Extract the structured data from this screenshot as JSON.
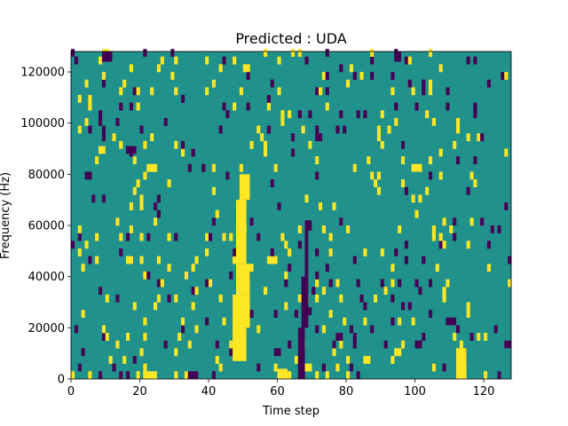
{
  "chart_data": {
    "type": "heatmap",
    "title": "Predicted : UDA",
    "xlabel": "Time step",
    "ylabel": "Frequency (Hz)",
    "xlim": [
      0,
      128
    ],
    "ylim": [
      0,
      128000
    ],
    "xticks": [
      0,
      20,
      40,
      60,
      80,
      100,
      120
    ],
    "yticks": [
      0,
      20000,
      40000,
      60000,
      80000,
      100000,
      120000
    ],
    "grid": false,
    "legend": "none",
    "n_time_steps": 128,
    "n_freq_bins": 128,
    "colors": {
      "background_class": "#21918c",
      "low_class": "#440154",
      "high_class": "#fde725"
    },
    "features": [
      {
        "class": "high",
        "t0": 47,
        "t1": 51,
        "f0": 7000,
        "f1": 20000
      },
      {
        "class": "high",
        "t0": 47,
        "t1": 52,
        "f0": 20000,
        "f1": 33000
      },
      {
        "class": "high",
        "t0": 48,
        "t1": 52,
        "f0": 33000,
        "f1": 45000
      },
      {
        "class": "high",
        "t0": 48,
        "t1": 51,
        "f0": 45000,
        "f1": 58000
      },
      {
        "class": "high",
        "t0": 48,
        "t1": 51,
        "f0": 58000,
        "f1": 70000
      },
      {
        "class": "high",
        "t0": 49,
        "t1": 52,
        "f0": 70000,
        "f1": 80000
      },
      {
        "class": "low",
        "t0": 66,
        "t1": 68,
        "f0": 0,
        "f1": 20000
      },
      {
        "class": "low",
        "t0": 67,
        "t1": 69,
        "f0": 20000,
        "f1": 40000
      },
      {
        "class": "low",
        "t0": 68,
        "t1": 69,
        "f0": 40000,
        "f1": 60000
      },
      {
        "class": "low",
        "t0": 68,
        "t1": 70,
        "f0": 58000,
        "f1": 62000
      },
      {
        "class": "high",
        "t0": 60,
        "t1": 63,
        "f0": 0,
        "f1": 4000
      },
      {
        "class": "high",
        "t0": 112,
        "t1": 115,
        "f0": 0,
        "f1": 12000
      },
      {
        "class": "high",
        "t0": 21,
        "t1": 25,
        "f0": 0,
        "f1": 3000
      },
      {
        "class": "low",
        "t0": 109,
        "t1": 112,
        "f0": 21000,
        "f1": 24000
      },
      {
        "class": "low",
        "t0": 126,
        "t1": 128,
        "f0": 12000,
        "f1": 15000
      },
      {
        "class": "low",
        "t0": 16,
        "t1": 19,
        "f0": 88000,
        "f1": 91000
      },
      {
        "class": "high",
        "t0": 8,
        "t1": 10,
        "f0": 88000,
        "f1": 91000
      },
      {
        "class": "low",
        "t0": 9,
        "t1": 12,
        "f0": 124000,
        "f1": 128000
      },
      {
        "class": "low",
        "t0": 94,
        "t1": 96,
        "f0": 124000,
        "f1": 128000
      },
      {
        "class": "high",
        "t0": 99,
        "t1": 101,
        "f0": 81000,
        "f1": 84000
      },
      {
        "class": "low",
        "t0": 68,
        "t1": 70,
        "f0": 25000,
        "f1": 28000
      },
      {
        "class": "low",
        "t0": 34,
        "t1": 37,
        "f0": 0,
        "f1": 3000
      }
    ],
    "noise_seed": 7,
    "noise_high_fraction": 0.045,
    "noise_low_fraction": 0.035
  }
}
